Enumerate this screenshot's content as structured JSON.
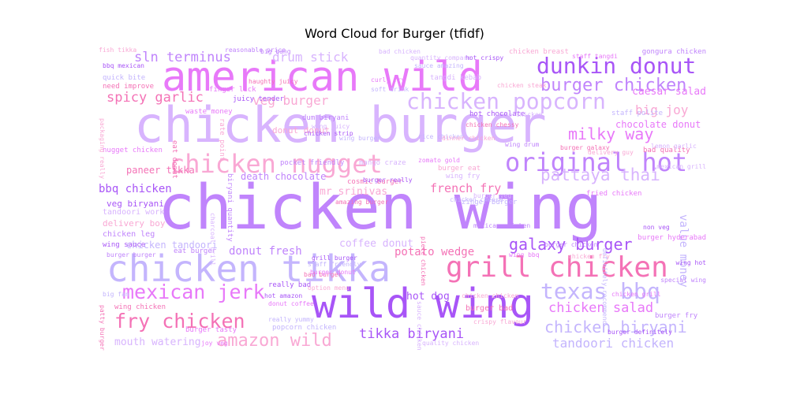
{
  "chart_data": {
    "type": "wordcloud",
    "title": "Word Cloud for Burger (tfidf)",
    "palette": [
      "#a855f7",
      "#c084fc",
      "#f472b6",
      "#e879f9",
      "#d8b4fe",
      "#f9a8d4",
      "#c4b5fd"
    ],
    "words": [
      {
        "text": "chicken wing",
        "weight": 1.0
      },
      {
        "text": "chicken burger",
        "weight": 0.88
      },
      {
        "text": "wild wing",
        "weight": 0.8
      },
      {
        "text": "american wild",
        "weight": 0.78
      },
      {
        "text": "chicken tikka",
        "weight": 0.7
      },
      {
        "text": "grill chicken",
        "weight": 0.6
      },
      {
        "text": "chicken nugget",
        "weight": 0.5
      },
      {
        "text": "original hot",
        "weight": 0.5
      },
      {
        "text": "chicken popcorn",
        "weight": 0.46
      },
      {
        "text": "dunkin donut",
        "weight": 0.45
      },
      {
        "text": "mexican jerk",
        "weight": 0.42
      },
      {
        "text": "texas bbq",
        "weight": 0.42
      },
      {
        "text": "fry chicken",
        "weight": 0.4
      },
      {
        "text": "amazon wild",
        "weight": 0.36
      },
      {
        "text": "burger chicken",
        "weight": 0.34
      },
      {
        "text": "pattaya thai",
        "weight": 0.32
      },
      {
        "text": "galaxy burger",
        "weight": 0.32
      },
      {
        "text": "milky way",
        "weight": 0.3
      },
      {
        "text": "chicken biryani",
        "weight": 0.3
      },
      {
        "text": "spicy garlic",
        "weight": 0.28
      },
      {
        "text": "veg burger",
        "weight": 0.27
      },
      {
        "text": "sln terminus",
        "weight": 0.26
      },
      {
        "text": "drum stick",
        "weight": 0.25
      },
      {
        "text": "tikka biryani",
        "weight": 0.26
      },
      {
        "text": "chicken salad",
        "weight": 0.26
      },
      {
        "text": "tandoori chicken",
        "weight": 0.25
      },
      {
        "text": "french fry",
        "weight": 0.25
      },
      {
        "text": "big joy",
        "weight": 0.23
      },
      {
        "text": "donut fresh",
        "weight": 0.22
      },
      {
        "text": "mouth watering",
        "weight": 0.2
      },
      {
        "text": "bbq chicken",
        "weight": 0.2
      },
      {
        "text": "caesar salad",
        "weight": 0.2
      },
      {
        "text": "value money",
        "weight": 0.22
      },
      {
        "text": "potato wedge",
        "weight": 0.2
      },
      {
        "text": "mr srinivas",
        "weight": 0.18
      },
      {
        "text": "death chocolate",
        "weight": 0.17
      },
      {
        "text": "coffee donut",
        "weight": 0.17
      },
      {
        "text": "hot dog",
        "weight": 0.17
      },
      {
        "text": "chocolate donut",
        "weight": 0.16
      },
      {
        "text": "chicken tandoori",
        "weight": 0.16
      },
      {
        "text": "paneer tikka",
        "weight": 0.15
      },
      {
        "text": "donut donut",
        "weight": 0.15
      },
      {
        "text": "pocket friendly",
        "weight": 0.13
      },
      {
        "text": "mango craze",
        "weight": 0.12
      },
      {
        "text": "veg biryani",
        "weight": 0.13
      },
      {
        "text": "nugget chicken",
        "weight": 0.12
      },
      {
        "text": "quick bite",
        "weight": 0.12
      },
      {
        "text": "need improve",
        "weight": 0.12
      },
      {
        "text": "chicken breast",
        "weight": 0.13
      },
      {
        "text": "gongura chicken",
        "weight": 0.12
      },
      {
        "text": "tangdi kebab",
        "weight": 0.11
      },
      {
        "text": "hot chocolate",
        "weight": 0.11
      },
      {
        "text": "waste money",
        "weight": 0.11
      },
      {
        "text": "wing burger",
        "weight": 0.1
      },
      {
        "text": "burger galaxy",
        "weight": 0.1
      },
      {
        "text": "delivery boy",
        "weight": 0.11
      },
      {
        "text": "chicken leg",
        "weight": 0.11
      },
      {
        "text": "tandoori work",
        "weight": 0.1
      },
      {
        "text": "wing sauce",
        "weight": 0.1
      },
      {
        "text": "fried chicken",
        "weight": 0.1
      },
      {
        "text": "zinger burger",
        "weight": 0.1
      },
      {
        "text": "cosmic burger",
        "weight": 0.1
      },
      {
        "text": "burger eat",
        "weight": 0.1
      },
      {
        "text": "eat burger",
        "weight": 0.1
      },
      {
        "text": "wing fry",
        "weight": 0.1
      },
      {
        "text": "really bad",
        "weight": 0.1
      },
      {
        "text": "burger tasty",
        "weight": 0.1
      },
      {
        "text": "popcorn chicken",
        "weight": 0.09
      },
      {
        "text": "wing chicken",
        "weight": 0.09
      },
      {
        "text": "fish tikka",
        "weight": 0.09
      },
      {
        "text": "big bang",
        "weight": 0.08
      },
      {
        "text": "bad chicken",
        "weight": 0.08
      },
      {
        "text": "juicy tender",
        "weight": 0.1
      },
      {
        "text": "finger lick",
        "weight": 0.1
      },
      {
        "text": "staff polite",
        "weight": 0.1
      },
      {
        "text": "bad quality",
        "weight": 0.09
      },
      {
        "text": "chicken fry",
        "weight": 0.09
      },
      {
        "text": "burger chicken",
        "weight": 0.09
      },
      {
        "text": "lemon garlic",
        "weight": 0.09
      },
      {
        "text": "bbq mexican",
        "weight": 0.08
      },
      {
        "text": "curly fry",
        "weight": 0.08
      },
      {
        "text": "soft drink",
        "weight": 0.08
      },
      {
        "text": "burger bad",
        "weight": 0.1
      },
      {
        "text": "chicken chicken",
        "weight": 0.09
      },
      {
        "text": "burger fry",
        "weight": 0.09
      },
      {
        "text": "burger veg",
        "weight": 0.09
      },
      {
        "text": "hot amazon",
        "weight": 0.08
      },
      {
        "text": "donut coffee",
        "weight": 0.08
      },
      {
        "text": "really yummy",
        "weight": 0.08
      },
      {
        "text": "eat donut",
        "weight": 0.09
      },
      {
        "text": "rate point",
        "weight": 0.09
      },
      {
        "text": "dum biryani",
        "weight": 0.09
      },
      {
        "text": "wing juicy",
        "weight": 0.08
      },
      {
        "text": "chicken strip",
        "weight": 0.08
      },
      {
        "text": "zomato gold",
        "weight": 0.08
      },
      {
        "text": "rice chicken",
        "weight": 0.08
      },
      {
        "text": "bad burger",
        "weight": 0.08
      },
      {
        "text": "option menu",
        "weight": 0.08
      },
      {
        "text": "biryani quantity",
        "weight": 0.08
      },
      {
        "text": "charcoal grill",
        "weight": 0.08
      },
      {
        "text": "grill burger",
        "weight": 0.08
      },
      {
        "text": "burger donut",
        "weight": 0.08
      },
      {
        "text": "staff friendly",
        "weight": 0.08
      },
      {
        "text": "piece chicken",
        "weight": 0.08
      },
      {
        "text": "delivery guy",
        "weight": 0.08
      },
      {
        "text": "special wing",
        "weight": 0.08
      },
      {
        "text": "quality chicken",
        "weight": 0.08
      },
      {
        "text": "burger definitely",
        "weight": 0.08
      },
      {
        "text": "joy veg",
        "weight": 0.08
      },
      {
        "text": "big fan",
        "weight": 0.08
      },
      {
        "text": "patty burger",
        "weight": 0.08
      },
      {
        "text": "packaging really",
        "weight": 0.08
      },
      {
        "text": "burger burger",
        "weight": 0.08
      },
      {
        "text": "sauce chicken",
        "weight": 0.08
      },
      {
        "text": "non veg",
        "weight": 0.08
      },
      {
        "text": "burger hyderabad",
        "weight": 0.08
      },
      {
        "text": "definitely recommend",
        "weight": 0.07
      },
      {
        "text": "chicken chessy",
        "weight": 0.07
      },
      {
        "text": "chicken steak",
        "weight": 0.07
      },
      {
        "text": "wing drum",
        "weight": 0.07
      },
      {
        "text": "mexican grill",
        "weight": 0.07
      },
      {
        "text": "burger really",
        "weight": 0.07
      },
      {
        "text": "wing bbq",
        "weight": 0.07
      },
      {
        "text": "sauce amazing",
        "weight": 0.07
      },
      {
        "text": "haughty juicy",
        "weight": 0.07
      },
      {
        "text": "dinner chicken",
        "weight": 0.07
      },
      {
        "text": "reasonable price",
        "weight": 0.07
      },
      {
        "text": "quantity compare",
        "weight": 0.07
      },
      {
        "text": "hot crispy",
        "weight": 0.07
      },
      {
        "text": "staff tangdi",
        "weight": 0.07
      },
      {
        "text": "chicken cheese",
        "weight": 0.07
      },
      {
        "text": "amazing burger",
        "weight": 0.07
      },
      {
        "text": "crispy flavour",
        "weight": 0.07
      },
      {
        "text": "mexican chicken",
        "weight": 0.07
      },
      {
        "text": "taste chicken",
        "weight": 0.07
      },
      {
        "text": "wing hot",
        "weight": 0.07
      },
      {
        "text": "chicken grill",
        "weight": 0.07
      }
    ]
  }
}
